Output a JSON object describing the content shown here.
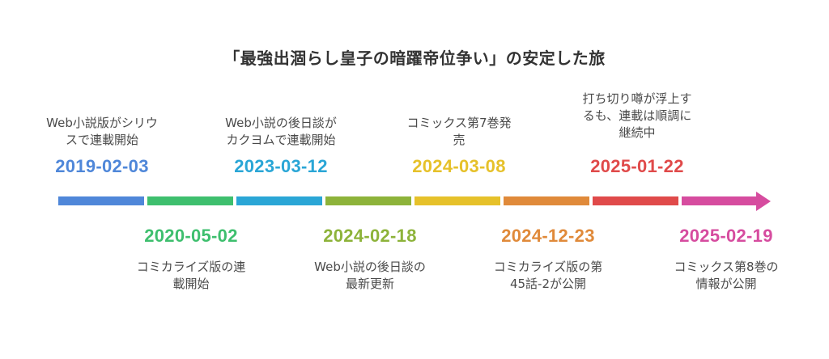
{
  "title": "「最強出涸らし皇子の暗躍帝位争い」の安定した旅",
  "events": [
    {
      "date": "2019-02-03",
      "line1": "Web小説版がシリウ",
      "line2": "スで連載開始",
      "line3": "",
      "color": "#4f87d9"
    },
    {
      "date": "2020-05-02",
      "line1": "コミカライズ版の連",
      "line2": "載開始",
      "line3": "",
      "color": "#3ebf6e"
    },
    {
      "date": "2023-03-12",
      "line1": "Web小説の後日談が",
      "line2": "カクヨムで連載開始",
      "line3": "",
      "color": "#2aa6d6"
    },
    {
      "date": "2024-02-18",
      "line1": "Web小説の後日談の",
      "line2": "最新更新",
      "line3": "",
      "color": "#8db33a"
    },
    {
      "date": "2024-03-08",
      "line1": "コミックス第7巻発",
      "line2": "売",
      "line3": "",
      "color": "#e6c12a"
    },
    {
      "date": "2024-12-23",
      "line1": "コミカライズ版の第",
      "line2": "45話-2が公開",
      "line3": "",
      "color": "#e08a3a"
    },
    {
      "date": "2025-01-22",
      "line1": "打ち切り噂が浮上す",
      "line2": "るも、連載は順調に",
      "line3": "継続中",
      "color": "#e04a4a"
    },
    {
      "date": "2025-02-19",
      "line1": "コミックス第8巻の",
      "line2": "情報が公開",
      "line3": "",
      "color": "#d64c9f"
    }
  ]
}
